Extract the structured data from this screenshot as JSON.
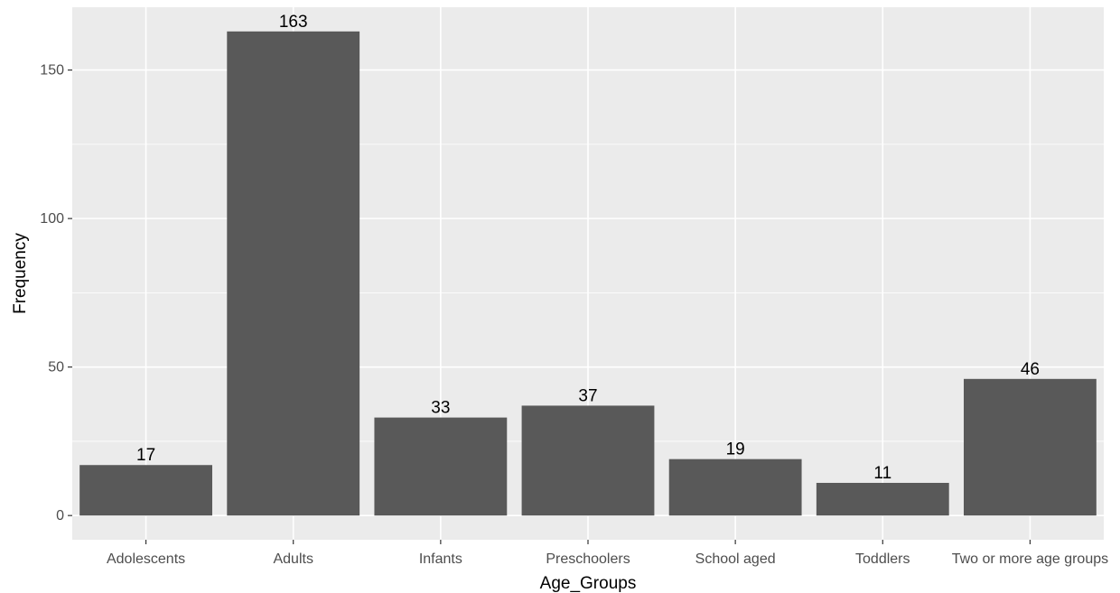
{
  "chart_data": {
    "type": "bar",
    "categories": [
      "Adolescents",
      "Adults",
      "Infants",
      "Preschoolers",
      "School aged",
      "Toddlers",
      "Two or more age groups"
    ],
    "values": [
      17,
      163,
      33,
      37,
      19,
      11,
      46
    ],
    "data_labels": [
      "17",
      "163",
      "33",
      "37",
      "19",
      "11",
      "46"
    ],
    "xlabel": "Age_Groups",
    "ylabel": "Frequency",
    "ylim": [
      -8.15,
      171.15
    ],
    "yticks": [
      0,
      50,
      100,
      150
    ],
    "ytick_labels": [
      "0",
      "50",
      "100",
      "150"
    ],
    "grid": true,
    "legend": "none",
    "colors": {
      "panel_background": "#ebebeb",
      "gridline": "#ffffff",
      "bar_fill": "#595959",
      "tick_mark": "#333333"
    }
  }
}
